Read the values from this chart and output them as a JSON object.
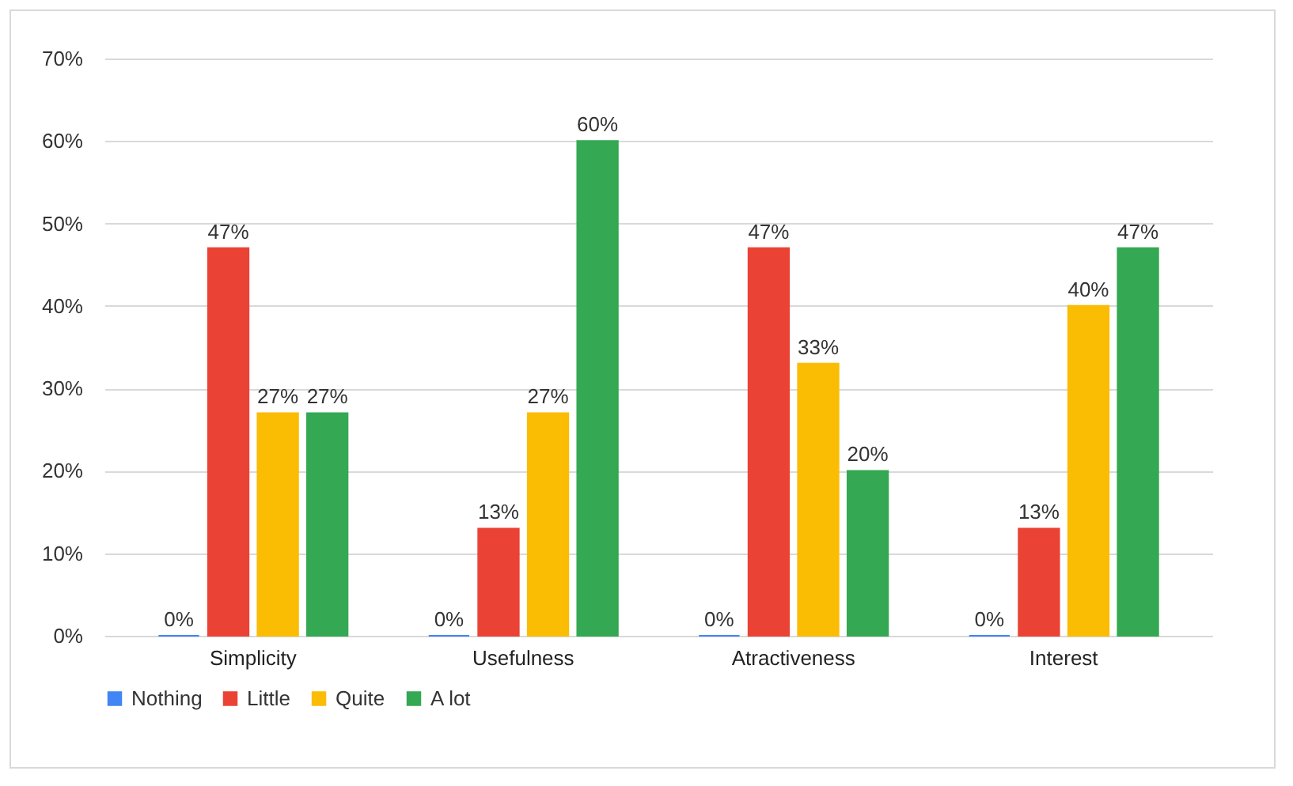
{
  "chart_data": {
    "type": "bar",
    "categories": [
      "Simplicity",
      "Usefulness",
      "Atractiveness",
      "Interest"
    ],
    "series": [
      {
        "name": "Nothing",
        "color": "#4285f4",
        "values": [
          0,
          0,
          0,
          0
        ],
        "value_labels": [
          "0%",
          "0%",
          "0%",
          "0%"
        ]
      },
      {
        "name": "Little",
        "color": "#ea4335",
        "values": [
          47,
          13,
          47,
          13
        ],
        "value_labels": [
          "47%",
          "13%",
          "47%",
          "13%"
        ]
      },
      {
        "name": "Quite",
        "color": "#fbbc04",
        "values": [
          27,
          27,
          33,
          40
        ],
        "value_labels": [
          "27%",
          "27%",
          "33%",
          "40%"
        ]
      },
      {
        "name": "A lot",
        "color": "#34a853",
        "values": [
          27,
          60,
          20,
          47
        ],
        "value_labels": [
          "27%",
          "60%",
          "20%",
          "47%"
        ]
      }
    ],
    "ylim": [
      0,
      70
    ],
    "yticks": [
      {
        "value": 0,
        "label": "0%"
      },
      {
        "value": 10,
        "label": "10%"
      },
      {
        "value": 20,
        "label": "20%"
      },
      {
        "value": 30,
        "label": "30%"
      },
      {
        "value": 40,
        "label": "40%"
      },
      {
        "value": 50,
        "label": "50%"
      },
      {
        "value": 60,
        "label": "60%"
      },
      {
        "value": 70,
        "label": "70%"
      }
    ],
    "grid": "y",
    "legend": "bottom"
  }
}
